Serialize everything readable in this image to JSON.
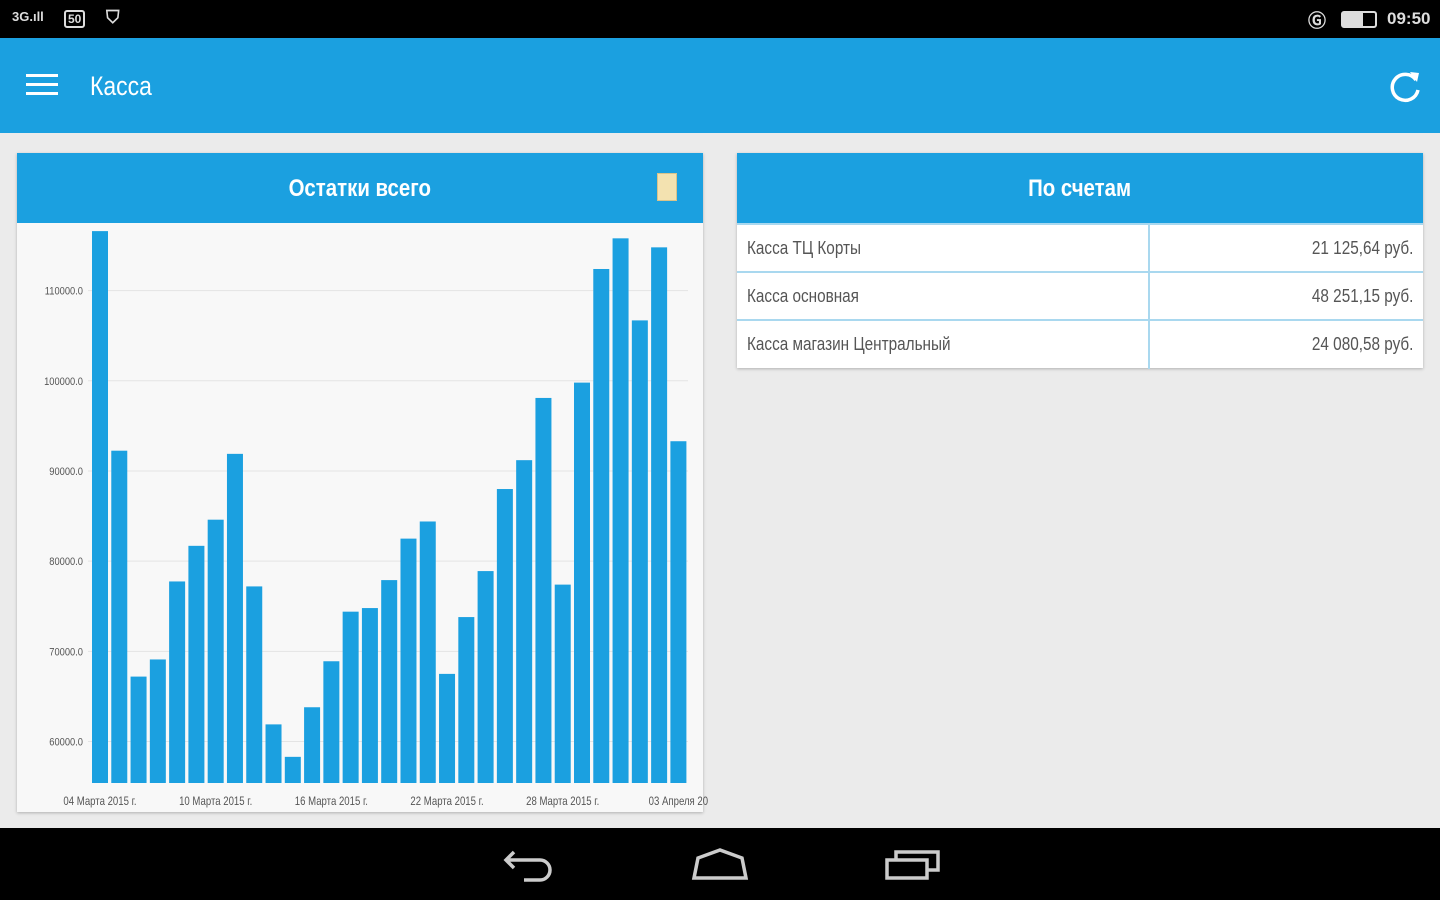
{
  "status_bar": {
    "signal": "3G",
    "badge": "50",
    "time": "09:50"
  },
  "app_bar": {
    "title": "Касса"
  },
  "left_card": {
    "title": "Остатки всего"
  },
  "right_card": {
    "title": "По счетам",
    "rows": [
      {
        "name": "Касса ТЦ Корты",
        "value": "21 125,64 руб."
      },
      {
        "name": "Касса основная",
        "value": "48 251,15 руб."
      },
      {
        "name": "Касса магазин Центральный",
        "value": "24 080,58 руб."
      }
    ]
  },
  "colors": {
    "accent": "#1ba0e0",
    "bar": "#1ba0e0"
  },
  "chart_data": {
    "type": "bar",
    "ylim": [
      55400,
      117500
    ],
    "yticks": [
      60000,
      70000,
      80000,
      90000,
      100000,
      110000
    ],
    "ytick_labels": [
      "60000.0",
      "70000.0",
      "80000.0",
      "90000.0",
      "100000.0",
      "110000.0"
    ],
    "xtick_labels": [
      "04 Марта 2015 г.",
      "10 Марта 2015 г.",
      "16 Марта 2015 г.",
      "22 Марта 2015 г.",
      "28 Марта 2015 г.",
      "03 Апреля 20"
    ],
    "grid": true,
    "values": [
      116600,
      92250,
      67200,
      69100,
      77750,
      81700,
      84600,
      91900,
      77200,
      61900,
      58300,
      63800,
      68900,
      74400,
      74800,
      77900,
      82500,
      84400,
      67500,
      73800,
      78900,
      88000,
      91200,
      98100,
      77400,
      99800,
      112400,
      115800,
      106700,
      114800,
      93300
    ]
  }
}
